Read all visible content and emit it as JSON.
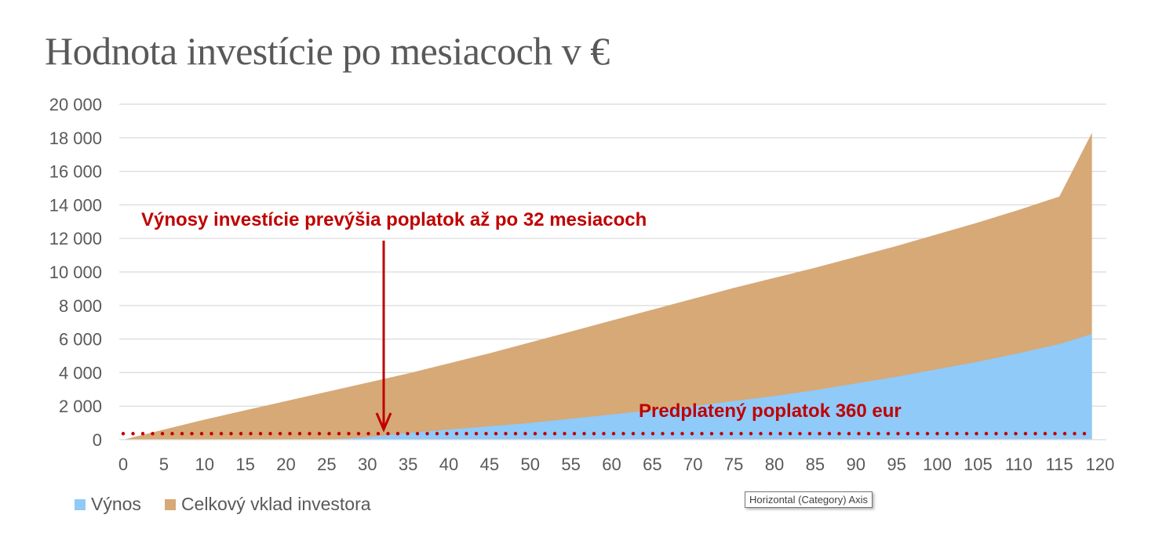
{
  "title": "Hodnota investície po mesiacoch v €",
  "tooltip": "Horizontal (Category) Axis",
  "colors": {
    "vynos": "#8fcaf9",
    "vklad": "#d6a977",
    "annotation": "#c00000",
    "grid": "#d9d9d9",
    "text": "#595959"
  },
  "chart_data": {
    "type": "area",
    "stacked": true,
    "title": "Hodnota investície po mesiacoch v €",
    "xlabel": "",
    "ylabel": "",
    "xlim": [
      0,
      120
    ],
    "ylim": [
      0,
      20000
    ],
    "grid": true,
    "legend_position": "bottom-left",
    "x_ticks": [
      "0",
      "5",
      "10",
      "15",
      "20",
      "25",
      "30",
      "35",
      "40",
      "45",
      "50",
      "55",
      "60",
      "65",
      "70",
      "75",
      "80",
      "85",
      "90",
      "95",
      "100",
      "105",
      "110",
      "115",
      "120"
    ],
    "y_ticks": [
      "0",
      "2 000",
      "4 000",
      "6 000",
      "8 000",
      "10 000",
      "12 000",
      "14 000",
      "16 000",
      "18 000",
      "20 000"
    ],
    "x": [
      0,
      5,
      10,
      15,
      20,
      25,
      30,
      35,
      40,
      45,
      50,
      55,
      60,
      65,
      70,
      75,
      80,
      85,
      90,
      95,
      100,
      105,
      110,
      115,
      119
    ],
    "series": [
      {
        "name": "Výnos",
        "values": [
          0,
          0,
          0,
          0,
          0,
          0,
          150,
          400,
          600,
          800,
          1000,
          1250,
          1500,
          1750,
          2000,
          2300,
          2600,
          2950,
          3350,
          3750,
          4200,
          4650,
          5150,
          5700,
          6300
        ]
      },
      {
        "name": "Celkový vklad investora",
        "values": [
          0,
          600,
          1200,
          1750,
          2300,
          2850,
          3250,
          3550,
          3950,
          4350,
          4800,
          5200,
          5600,
          6000,
          6400,
          6750,
          7050,
          7300,
          7550,
          7800,
          8050,
          8300,
          8550,
          8800,
          12000
        ]
      }
    ],
    "annotations": {
      "arrow_text": "Výnosy investície prevýšia poplatok až po 32 mesiacoch",
      "arrow_month": 32,
      "fee_text": "Predplatený poplatok 360 eur",
      "fee_value": 360
    }
  }
}
